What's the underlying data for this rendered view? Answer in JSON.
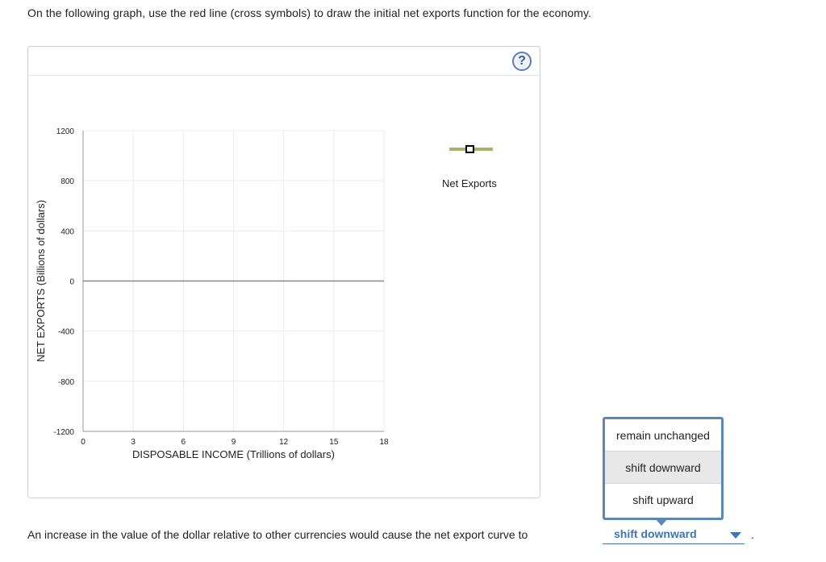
{
  "instruction": "On the following graph, use the red line (cross symbols) to draw the initial net exports function for the economy.",
  "help_button": {
    "label": "?"
  },
  "chart_data": {
    "type": "line",
    "title": "",
    "xlabel": "DISPOSABLE INCOME (Trillions of dollars)",
    "ylabel": "NET EXPORTS (Billions of dollars)",
    "xlim": [
      0,
      18
    ],
    "ylim": [
      -1200,
      1200
    ],
    "x_ticks": [
      "0",
      "3",
      "6",
      "9",
      "12",
      "15",
      "18"
    ],
    "y_ticks": [
      "1200",
      "800",
      "400",
      "0",
      "-400",
      "-800",
      "-1200"
    ],
    "x_tick_values": [
      0,
      3,
      6,
      9,
      12,
      15,
      18
    ],
    "y_tick_values": [
      1200,
      800,
      400,
      0,
      -400,
      -800,
      -1200
    ],
    "grid": true,
    "series": [
      {
        "name": "Net Exports",
        "x": [
          0,
          18
        ],
        "y": [
          0,
          0
        ],
        "color": "#888888"
      }
    ],
    "legend": {
      "label": "Net Exports",
      "line_color": "#a8b26a",
      "marker_color": "#000000",
      "placement": "top-right"
    }
  },
  "dropdown": {
    "options": [
      "remain unchanged",
      "shift downward",
      "shift upward"
    ],
    "selected_index": 1,
    "border_color": "#5b88b8"
  },
  "question": {
    "text": "An increase in the value of the dollar relative to other currencies would cause the net export curve to",
    "selected_value": "shift downward",
    "end": "."
  }
}
